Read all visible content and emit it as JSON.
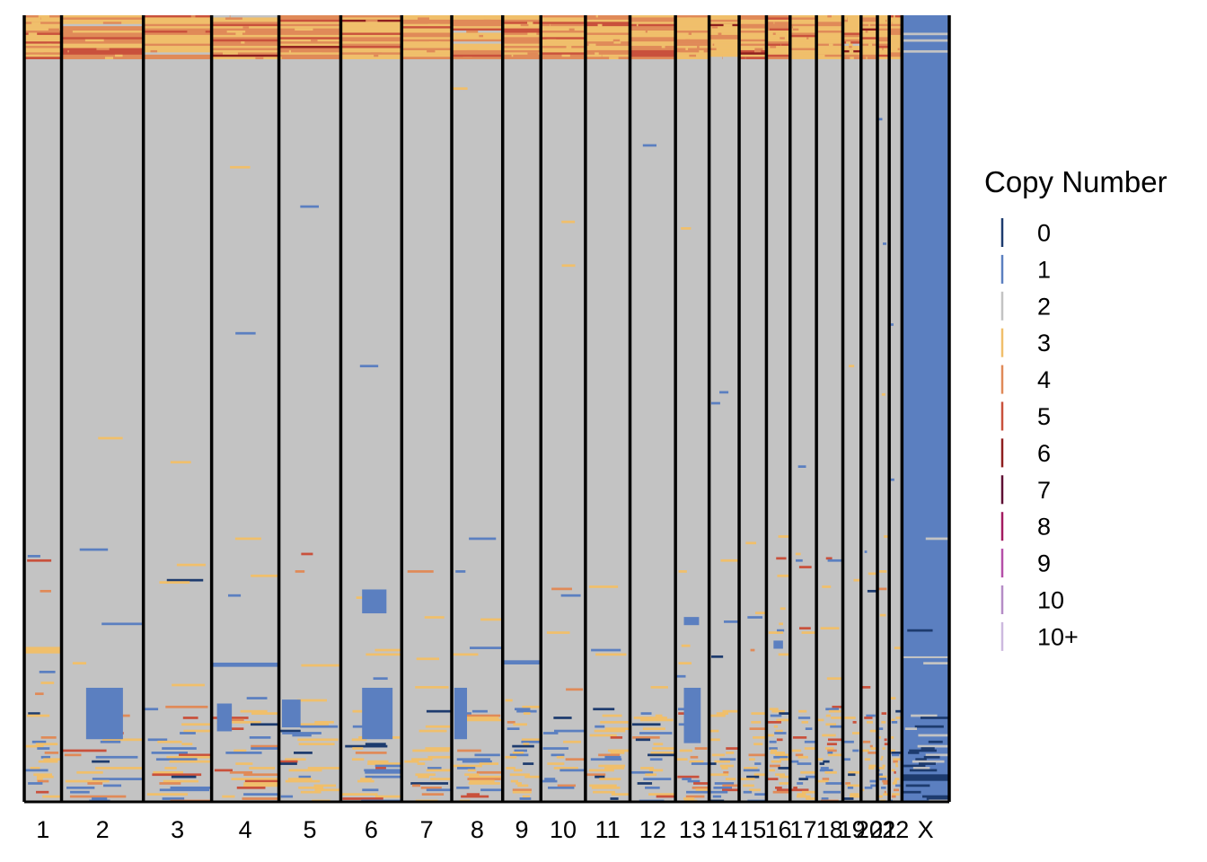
{
  "chart_data": {
    "type": "heatmap",
    "title": "",
    "xlabel": "",
    "ylabel": "",
    "x_categories": [
      "1",
      "2",
      "3",
      "4",
      "5",
      "6",
      "7",
      "8",
      "9",
      "10",
      "11",
      "12",
      "13",
      "14",
      "15",
      "16",
      "17",
      "18",
      "19",
      "20",
      "21",
      "22",
      "X"
    ],
    "chromosome_relative_widths": [
      41,
      90,
      75,
      74,
      68,
      67,
      55,
      56,
      42,
      49,
      49,
      50,
      37,
      33,
      30,
      26,
      29,
      29,
      20,
      18,
      13,
      14,
      52
    ],
    "cell_rows": 360,
    "baseline_copy_number": 2,
    "chrX_baseline_copy_number": 1,
    "legend": {
      "title": "Copy Number",
      "position": "right",
      "entries": [
        {
          "label": "0",
          "color": "#1d3b6e"
        },
        {
          "label": "1",
          "color": "#5b7fc0"
        },
        {
          "label": "2",
          "color": "#c3c3c3"
        },
        {
          "label": "3",
          "color": "#f0bf6b"
        },
        {
          "label": "4",
          "color": "#e08a58"
        },
        {
          "label": "5",
          "color": "#c9513c"
        },
        {
          "label": "6",
          "color": "#8e1e1e"
        },
        {
          "label": "7",
          "color": "#5e0f33"
        },
        {
          "label": "8",
          "color": "#a31b60"
        },
        {
          "label": "9",
          "color": "#b54fa8"
        },
        {
          "label": "10",
          "color": "#b58cc6"
        },
        {
          "label": "10+",
          "color": "#cdb9df"
        }
      ]
    },
    "row_groups": [
      {
        "rows": "top ~6%",
        "dominant_copy_number": 3,
        "note_states": [
          3,
          4,
          5
        ]
      },
      {
        "rows": "middle ~62%",
        "dominant_copy_number": 2
      },
      {
        "rows": "lower ~25%",
        "dominant_copy_number": 2,
        "note_states": [
          1,
          3
        ]
      },
      {
        "rows": "bottom ~7%",
        "dominant_copy_number": 2,
        "note_states": [
          0,
          1,
          3,
          4,
          5
        ]
      }
    ]
  }
}
